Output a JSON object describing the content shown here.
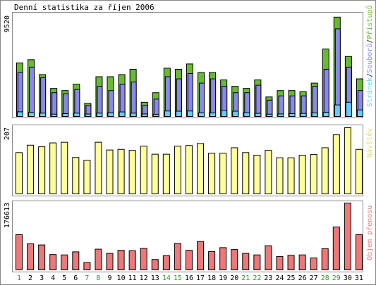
{
  "title": "Denní statistika za říjen 2006",
  "colors": {
    "hits": "#66bb33",
    "files": "#8888ee",
    "pages": "#66ccff",
    "visits": "#ffff99",
    "volume": "#ee7777",
    "weekday_label": "#000000",
    "weekend_label": "#339933",
    "legend_pages": "#66ccff",
    "legend_files": "#8888ee",
    "legend_hits": "#66bb33",
    "legend_visits": "#dddd66",
    "legend_volume": "#ee7777"
  },
  "chart_data": [
    {
      "type": "bar",
      "panel": "top",
      "ymax_label": "9520",
      "ylim": [
        0,
        9520
      ],
      "legend": [
        "Stránek",
        "Souborů",
        "Přístupů"
      ],
      "legend_separator": "/",
      "categories": [
        "1",
        "2",
        "3",
        "4",
        "5",
        "6",
        "7",
        "8",
        "9",
        "10",
        "11",
        "12",
        "13",
        "14",
        "15",
        "16",
        "17",
        "18",
        "19",
        "20",
        "21",
        "22",
        "23",
        "24",
        "25",
        "26",
        "27",
        "28",
        "29",
        "30",
        "31"
      ],
      "weekend_days": [
        "1",
        "7",
        "8",
        "14",
        "15",
        "21",
        "22",
        "28",
        "29"
      ],
      "series": [
        {
          "name": "Přístupů",
          "values": [
            5100,
            5400,
            4000,
            2700,
            2500,
            3100,
            1300,
            3800,
            3800,
            4000,
            4500,
            1400,
            2300,
            4600,
            4500,
            5000,
            4200,
            4200,
            3500,
            2900,
            2700,
            3500,
            1900,
            2500,
            2500,
            2400,
            3200,
            6400,
            9400,
            5700,
            3600
          ]
        },
        {
          "name": "Souborů",
          "values": [
            4200,
            4700,
            3700,
            2300,
            2200,
            2600,
            1100,
            2900,
            2500,
            3100,
            3300,
            1100,
            1700,
            3800,
            3600,
            4100,
            3200,
            3600,
            2900,
            2300,
            2300,
            3000,
            1600,
            2000,
            2000,
            2000,
            2900,
            4500,
            8300,
            4700,
            2500
          ]
        },
        {
          "name": "Stránek",
          "values": [
            500,
            450,
            380,
            280,
            330,
            380,
            290,
            380,
            420,
            490,
            380,
            300,
            270,
            580,
            560,
            580,
            420,
            400,
            630,
            560,
            420,
            360,
            280,
            300,
            330,
            350,
            400,
            460,
            1150,
            1400,
            680
          ]
        }
      ]
    },
    {
      "type": "bar",
      "panel": "middle",
      "ymax_label": "207",
      "ylim": [
        0,
        207
      ],
      "legend": [
        "Návštěv"
      ],
      "series": [
        {
          "name": "Návštěv",
          "values": [
            130,
            153,
            148,
            160,
            162,
            115,
            106,
            162,
            138,
            140,
            137,
            150,
            125,
            125,
            150,
            152,
            158,
            128,
            128,
            145,
            130,
            122,
            137,
            114,
            114,
            122,
            124,
            145,
            185,
            207,
            140
          ]
        }
      ]
    },
    {
      "type": "bar",
      "panel": "bottom",
      "ymax_label": "176613",
      "ylim": [
        0,
        176613
      ],
      "legend": [
        "Objem přenosu"
      ],
      "series": [
        {
          "name": "Objem přenosu",
          "values": [
            94000,
            70000,
            67000,
            42000,
            41000,
            49000,
            21000,
            56000,
            45000,
            53000,
            52000,
            58000,
            29000,
            39000,
            71000,
            53000,
            76000,
            50000,
            60000,
            55000,
            45000,
            41000,
            65000,
            37000,
            40000,
            41000,
            33000,
            57000,
            114000,
            176613,
            94000
          ]
        }
      ]
    }
  ]
}
